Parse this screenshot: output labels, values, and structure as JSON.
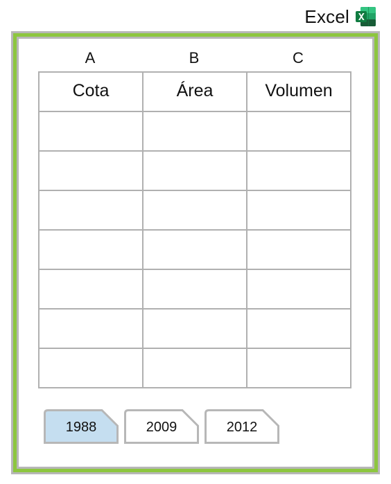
{
  "app": {
    "label": "Excel",
    "icon": "excel-icon",
    "icon_colors": {
      "dark": "#185c37",
      "mid": "#21a366",
      "light": "#33c481",
      "badge": "#107c41"
    }
  },
  "colors": {
    "frame_green": "#8dc63f",
    "frame_gray": "#b7b7b7",
    "grid_line": "#b0b0b0",
    "active_tab_fill": "#c5def0"
  },
  "spreadsheet": {
    "column_letters": [
      "A",
      "B",
      "C"
    ],
    "headers": [
      "Cota",
      "Área",
      "Volumen"
    ],
    "rows": [
      [
        "",
        "",
        ""
      ],
      [
        "",
        "",
        ""
      ],
      [
        "",
        "",
        ""
      ],
      [
        "",
        "",
        ""
      ],
      [
        "",
        "",
        ""
      ],
      [
        "",
        "",
        ""
      ],
      [
        "",
        "",
        ""
      ]
    ]
  },
  "tabs": [
    {
      "label": "1988",
      "active": true
    },
    {
      "label": "2009",
      "active": false
    },
    {
      "label": "2012",
      "active": false
    }
  ]
}
